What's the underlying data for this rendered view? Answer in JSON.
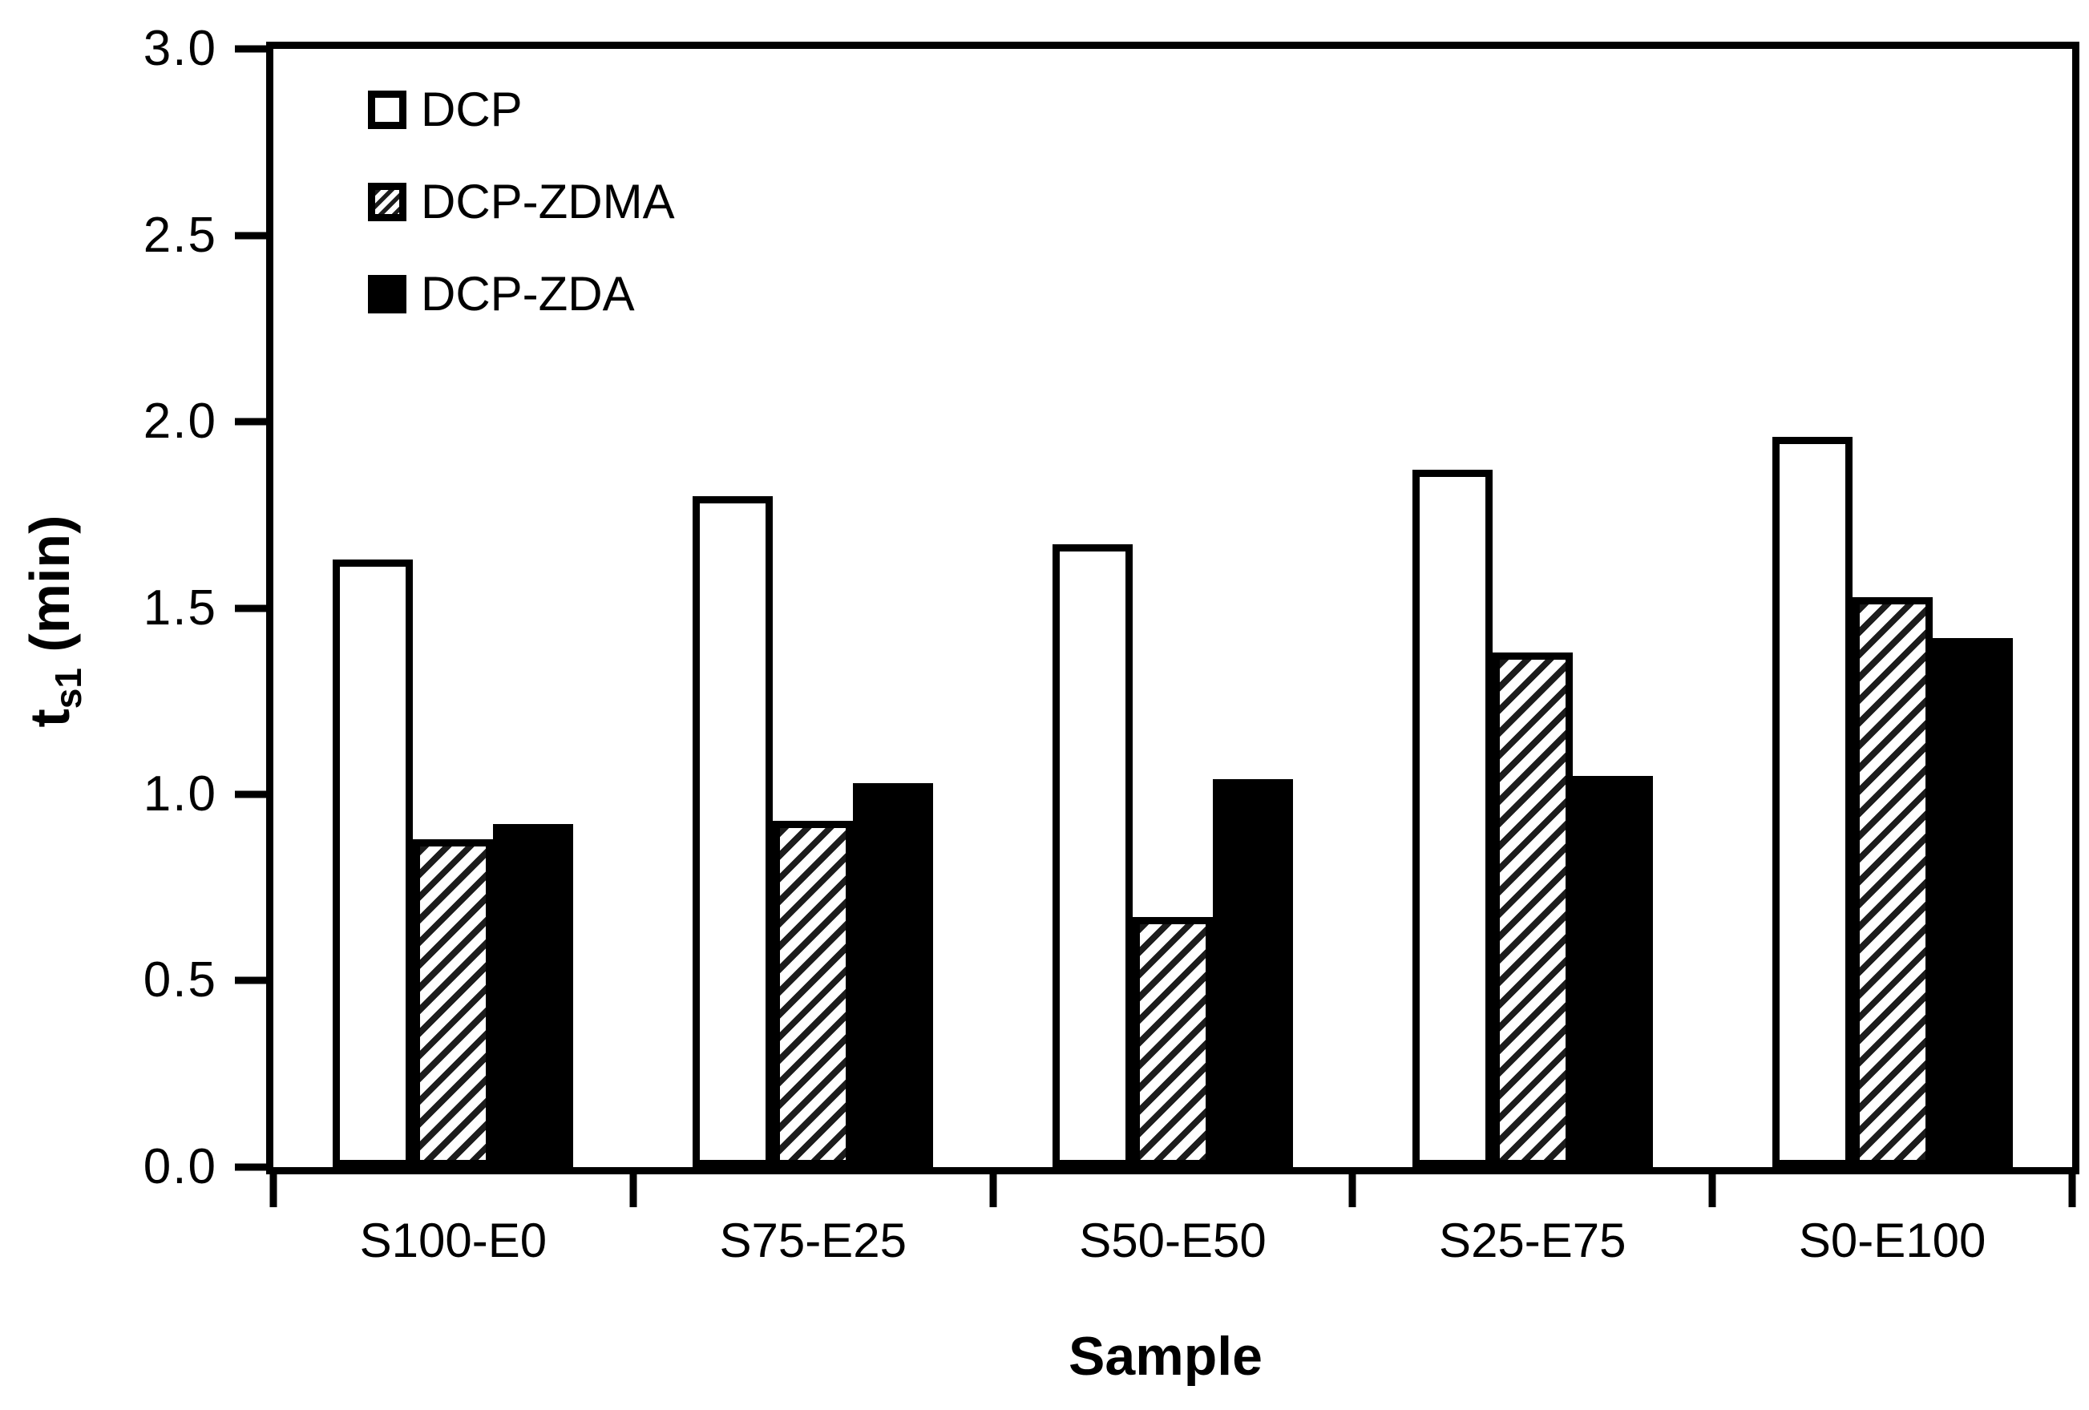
{
  "figure": {
    "background": "#ffffff",
    "frame_color": "#000000",
    "text_color": "#000000"
  },
  "y_axis": {
    "title_main": "t",
    "title_sub": "s1",
    "title_rest": " (min)",
    "tick_labels": [
      "3.0",
      "2.5",
      "2.0",
      "1.5",
      "1.0",
      "0.5",
      "0.0"
    ]
  },
  "x_axis": {
    "title": "Sample"
  },
  "chart_data": {
    "type": "bar",
    "title": "",
    "xlabel": "Sample",
    "ylabel": "t_s1 (min)",
    "ylim": [
      0,
      3
    ],
    "yticks": [
      0.0,
      0.5,
      1.0,
      1.5,
      2.0,
      2.5,
      3.0
    ],
    "grid": false,
    "legend_position": "top-left",
    "bar_outline_color": "#000000",
    "categories": [
      "S100-E0",
      "S75-E25",
      "S50-E50",
      "S25-E75",
      "S0-E100"
    ],
    "series": [
      {
        "name": "DCP",
        "fill": "white",
        "values": [
          1.63,
          1.8,
          1.67,
          1.87,
          1.96
        ]
      },
      {
        "name": "DCP-ZDMA",
        "fill": "hatch",
        "values": [
          0.88,
          0.93,
          0.67,
          1.38,
          1.53
        ]
      },
      {
        "name": "DCP-ZDA",
        "fill": "black",
        "values": [
          0.92,
          1.03,
          1.04,
          1.05,
          1.42
        ]
      }
    ]
  }
}
